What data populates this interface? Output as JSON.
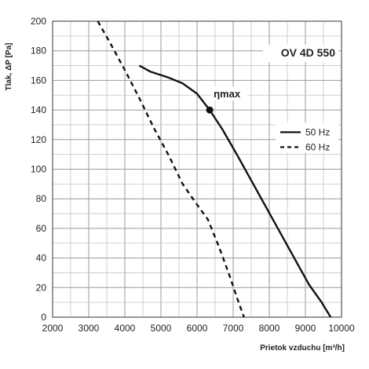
{
  "chart_data": {
    "type": "line",
    "model_label": "OV 4D 550",
    "xlabel": "Prietok vzduchu  [m³/h]",
    "ylabel": "Tlak, ΔP [Pa]",
    "xlim": [
      2000,
      10000
    ],
    "ylim": [
      0,
      200
    ],
    "x_ticks": [
      "2000",
      "3000",
      "4000",
      "5000",
      "6000",
      "7000",
      "8000",
      "9000",
      "10000"
    ],
    "y_ticks": [
      "0",
      "20",
      "40",
      "60",
      "80",
      "100",
      "120",
      "140",
      "160",
      "180",
      "200"
    ],
    "grid": true,
    "legend_position": "right",
    "annotation": {
      "label": "ηmax",
      "x": 6350,
      "y": 140
    },
    "series": [
      {
        "name": "50 Hz",
        "style": "solid",
        "points": [
          [
            4400,
            170
          ],
          [
            4700,
            166
          ],
          [
            5200,
            162
          ],
          [
            5600,
            158
          ],
          [
            6000,
            151
          ],
          [
            6350,
            140
          ],
          [
            6700,
            127
          ],
          [
            7100,
            110
          ],
          [
            7600,
            88
          ],
          [
            8100,
            66
          ],
          [
            8600,
            44
          ],
          [
            9100,
            22
          ],
          [
            9450,
            10
          ],
          [
            9600,
            4
          ],
          [
            9700,
            0
          ]
        ]
      },
      {
        "name": "60 Hz",
        "style": "dashed",
        "points": [
          [
            3250,
            200
          ],
          [
            3600,
            185
          ],
          [
            4000,
            167
          ],
          [
            4400,
            148
          ],
          [
            4800,
            128
          ],
          [
            5200,
            110
          ],
          [
            5600,
            90
          ],
          [
            6000,
            76
          ],
          [
            6300,
            66
          ],
          [
            6600,
            48
          ],
          [
            6900,
            28
          ],
          [
            7150,
            10
          ],
          [
            7300,
            0
          ]
        ]
      }
    ]
  }
}
